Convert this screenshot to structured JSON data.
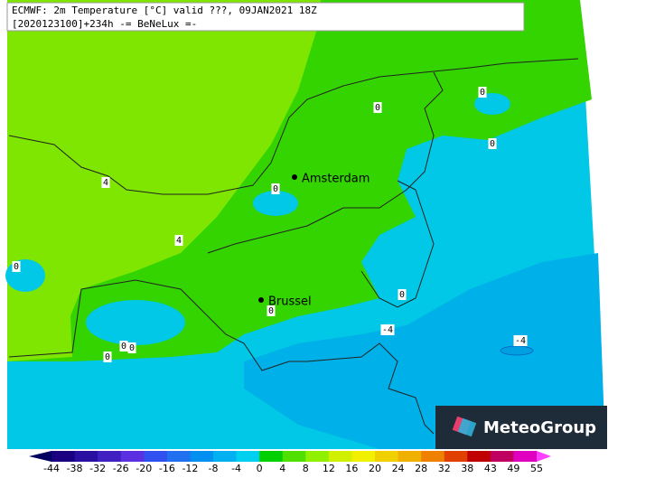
{
  "header": {
    "line1": "ECMWF: 2m Temperature [°C] valid ???, 09JAN2021 18Z",
    "line2": "[2020123100]+234h -= BeNeLux =-"
  },
  "cities": [
    {
      "label": "Amsterdam"
    },
    {
      "label": "Brussel"
    }
  ],
  "contour_labels": [
    "0",
    "0",
    "0",
    "0",
    "0",
    "0",
    "0",
    "0",
    "0",
    "0",
    "4",
    "4",
    "-4",
    "-4"
  ],
  "colorbar": {
    "ticks": [
      -44,
      -38,
      -32,
      -26,
      -20,
      -16,
      -12,
      -8,
      -4,
      0,
      4,
      8,
      12,
      16,
      20,
      24,
      28,
      32,
      38,
      43,
      49,
      55
    ],
    "colors": [
      "#1a0080",
      "#2a10a0",
      "#4020c0",
      "#5a30e0",
      "#3050f0",
      "#2070f0",
      "#0090f0",
      "#00b0f0",
      "#00d0f0",
      "#00d000",
      "#50e000",
      "#90f000",
      "#d0f000",
      "#f0f000",
      "#f0d000",
      "#f0b000",
      "#f08000",
      "#e04000",
      "#c00000",
      "#c00060",
      "#e000c0"
    ],
    "under_color": "#000060",
    "over_color": "#ff40ff"
  },
  "logo": "MeteoGroup"
}
